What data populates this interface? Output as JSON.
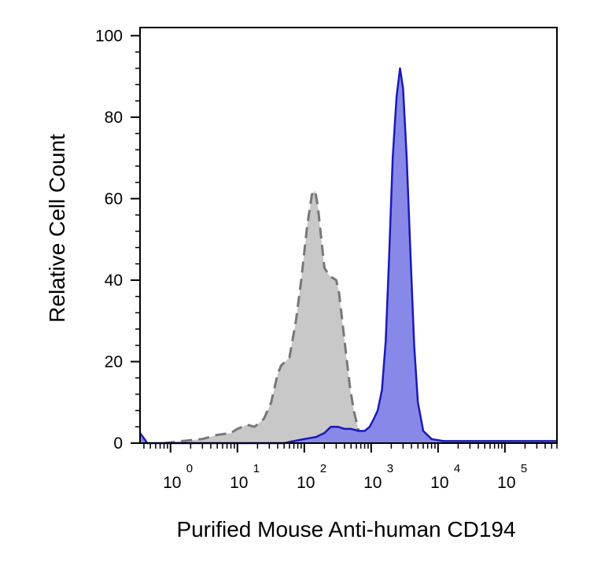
{
  "chart_data": {
    "type": "area",
    "xlabel": "Purified Mouse Anti-human CD194",
    "ylabel": "Relative Cell Count",
    "x_scale": "log",
    "xlim": [
      0.35,
      600000
    ],
    "ylim": [
      0,
      102
    ],
    "y_ticks": [
      0,
      20,
      40,
      60,
      80,
      100
    ],
    "x_ticks": [
      {
        "base": "10",
        "exp": "0",
        "value": 1
      },
      {
        "base": "10",
        "exp": "1",
        "value": 10
      },
      {
        "base": "10",
        "exp": "2",
        "value": 100
      },
      {
        "base": "10",
        "exp": "3",
        "value": 1000
      },
      {
        "base": "10",
        "exp": "4",
        "value": 10000
      },
      {
        "base": "10",
        "exp": "5",
        "value": 100000
      }
    ],
    "series": [
      {
        "fill": "#c8c8c8",
        "stroke": "#777777",
        "dashed": true,
        "points": [
          [
            0.8,
            0
          ],
          [
            1.5,
            0.5
          ],
          [
            3,
            1
          ],
          [
            5,
            2
          ],
          [
            8,
            2.5
          ],
          [
            10,
            3.5
          ],
          [
            14,
            4.5
          ],
          [
            18,
            4
          ],
          [
            25,
            6
          ],
          [
            32,
            10
          ],
          [
            40,
            17
          ],
          [
            45,
            19
          ],
          [
            60,
            21
          ],
          [
            75,
            30
          ],
          [
            90,
            40
          ],
          [
            110,
            53
          ],
          [
            130,
            61
          ],
          [
            145,
            62
          ],
          [
            160,
            58
          ],
          [
            180,
            50
          ],
          [
            200,
            43
          ],
          [
            240,
            41
          ],
          [
            300,
            40
          ],
          [
            330,
            37
          ],
          [
            370,
            30
          ],
          [
            420,
            22
          ],
          [
            480,
            14
          ],
          [
            550,
            8
          ],
          [
            650,
            3
          ],
          [
            800,
            1
          ],
          [
            1000,
            0
          ]
        ]
      },
      {
        "fill": "#8888e8",
        "stroke": "#1a1ab8",
        "dashed": false,
        "points": [
          [
            0.35,
            2.5
          ],
          [
            0.45,
            0
          ],
          [
            20,
            0
          ],
          [
            50,
            0
          ],
          [
            70,
            0.5
          ],
          [
            100,
            1
          ],
          [
            150,
            1.5
          ],
          [
            200,
            2.5
          ],
          [
            250,
            4
          ],
          [
            320,
            4
          ],
          [
            400,
            3.5
          ],
          [
            500,
            3.5
          ],
          [
            650,
            3
          ],
          [
            800,
            3
          ],
          [
            950,
            4
          ],
          [
            1100,
            6
          ],
          [
            1250,
            8
          ],
          [
            1450,
            13
          ],
          [
            1650,
            25
          ],
          [
            1850,
            45
          ],
          [
            2100,
            70
          ],
          [
            2400,
            85
          ],
          [
            2700,
            92
          ],
          [
            3000,
            87
          ],
          [
            3400,
            70
          ],
          [
            3900,
            45
          ],
          [
            4400,
            24
          ],
          [
            5000,
            10
          ],
          [
            6000,
            3
          ],
          [
            8000,
            1
          ],
          [
            12000,
            0.5
          ],
          [
            100000,
            0.5
          ],
          [
            600000,
            0.5
          ]
        ]
      }
    ]
  }
}
